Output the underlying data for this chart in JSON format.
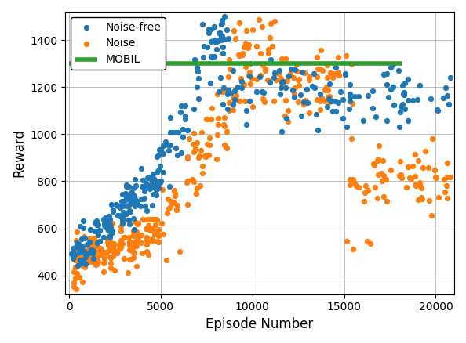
{
  "xlabel": "Episode Number",
  "ylabel": "Reward",
  "xlim": [
    -200,
    21000
  ],
  "ylim": [
    320,
    1520
  ],
  "mobil_y": 1300,
  "mobil_x_start": 0,
  "mobil_x_end": 18200,
  "mobil_color": "#2ca02c",
  "mobil_linewidth": 4.0,
  "noise_free_color": "#1f77b4",
  "noise_color": "#ff7f0e",
  "marker_size": 6.5,
  "legend_loc": "upper left",
  "figsize": [
    5.94,
    4.38
  ],
  "dpi": 100,
  "xticks": [
    0,
    5000,
    10000,
    15000,
    20000
  ],
  "yticks": [
    400,
    600,
    800,
    1000,
    1200,
    1400
  ]
}
